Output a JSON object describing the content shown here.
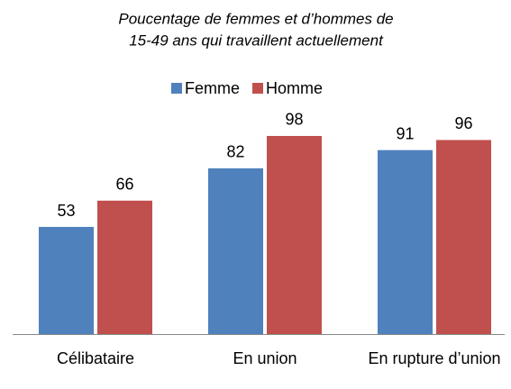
{
  "chart_data": {
    "type": "bar",
    "title": [
      "Poucentage de femmes et d’hommes de",
      "15-49 ans qui travaillent actuellement"
    ],
    "categories": [
      "Célibataire",
      "En union",
      "En rupture d’union"
    ],
    "series": [
      {
        "name": "Femme",
        "color": "#4f81bd",
        "values": [
          53,
          82,
          91
        ]
      },
      {
        "name": "Homme",
        "color": "#c0504d",
        "values": [
          66,
          98,
          96
        ]
      }
    ],
    "ylim": [
      0,
      100
    ],
    "legend": "top"
  }
}
